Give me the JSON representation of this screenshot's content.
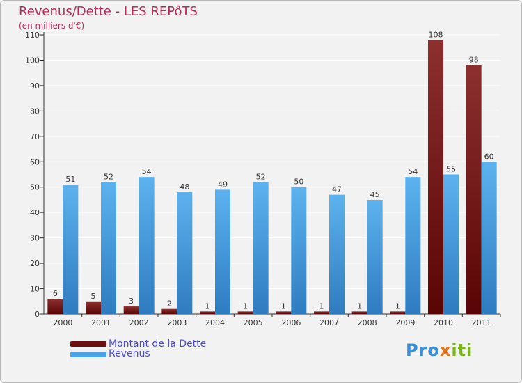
{
  "title": "Revenus/Dette - LES REPôTS",
  "subtitle": "(en milliers d'€)",
  "legend": [
    {
      "label": "Montant de la Dette",
      "color": "#6b0f0f"
    },
    {
      "label": "Revenus",
      "color": "#4aa3e6"
    }
  ],
  "logo": {
    "parts": [
      "Pro",
      "x",
      "iti"
    ]
  },
  "colors": {
    "debt_top": "#8c2f2f",
    "debt_bottom": "#5a0505",
    "rev_top": "#5cb2ee",
    "rev_bottom": "#2f7cc0",
    "title": "#b8285a",
    "legend_text": "#4a4ae0"
  },
  "chart_data": {
    "type": "bar",
    "title": "Revenus/Dette - LES REPôTS",
    "ylabel": "(en milliers d'€)",
    "xlabel": "",
    "categories": [
      "2000",
      "2001",
      "2002",
      "2003",
      "2004",
      "2005",
      "2006",
      "2007",
      "2008",
      "2009",
      "2010",
      "2011"
    ],
    "series": [
      {
        "name": "Montant de la Dette",
        "values": [
          6,
          5,
          3,
          2,
          1,
          1,
          1,
          1,
          1,
          1,
          108,
          98
        ]
      },
      {
        "name": "Revenus",
        "values": [
          51,
          52,
          54,
          48,
          49,
          52,
          50,
          47,
          45,
          54,
          55,
          60
        ]
      }
    ],
    "ylim": [
      0,
      110
    ],
    "yticks": [
      0,
      10,
      20,
      30,
      40,
      50,
      60,
      70,
      80,
      90,
      100,
      110
    ],
    "grid": true,
    "legend_position": "bottom-left"
  }
}
